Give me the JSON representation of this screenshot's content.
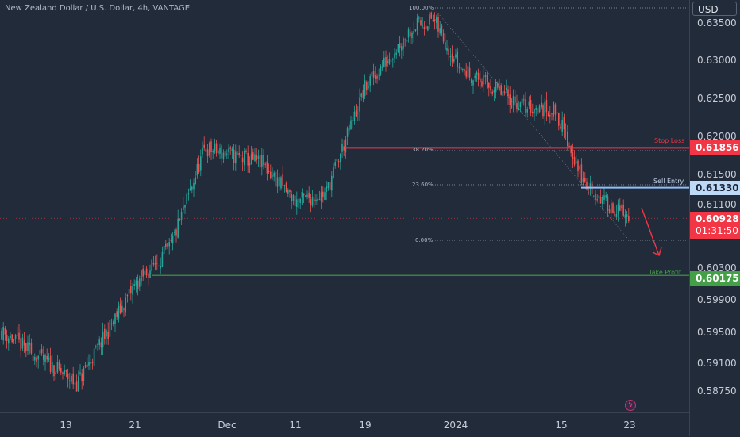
{
  "symbol_title": "New Zealand Dollar / U.S. Dollar, 4h, VANTAGE",
  "currency": "USD",
  "price_ticks": [
    "0.63500",
    "0.63000",
    "0.62500",
    "0.62000",
    "0.61500",
    "0.61100",
    "0.60300",
    "0.59900",
    "0.59500",
    "0.59100",
    "0.58750"
  ],
  "time_ticks": [
    "13",
    "21",
    "Dec",
    "11",
    "19",
    "2024",
    "15",
    "23"
  ],
  "levels": {
    "stop_loss": {
      "label": "Stop Loss",
      "price": "0.61856",
      "color": "#f23645"
    },
    "sell_entry": {
      "label": "Sell Entry",
      "price": "0.61330",
      "color": "#90bff9"
    },
    "take_profit": {
      "label": "Take Profit",
      "price": "0.60175",
      "color": "#43a047"
    },
    "current": {
      "price": "0.60928",
      "countdown": "01:31:50",
      "color": "#f23645"
    }
  },
  "fib_levels": [
    "100.00%",
    "38.20%",
    "23.60%",
    "0.00%"
  ],
  "colors": {
    "up": "#26a69a",
    "down": "#ef5350",
    "background": "#222b3a"
  },
  "chart_data": {
    "type": "candlestick",
    "title": "New Zealand Dollar / U.S. Dollar, 4h, VANTAGE",
    "currency": "USD",
    "y_ticks": [
      0.635,
      0.63,
      0.625,
      0.62,
      0.615,
      0.611,
      0.603,
      0.599,
      0.595,
      0.591,
      0.5875
    ],
    "x_ticks": [
      "13",
      "21",
      "Dec",
      "11",
      "19",
      "2024",
      "15",
      "23"
    ],
    "close_path": [
      [
        "13",
        0.5945
      ],
      [
        "17",
        0.5875
      ],
      [
        "21",
        0.6005
      ],
      [
        "25",
        0.6055
      ],
      [
        "Dec",
        0.6185
      ],
      [
        "5",
        0.6165
      ],
      [
        "11",
        0.6115
      ],
      [
        "15",
        0.6125
      ],
      [
        "19",
        0.6265
      ],
      [
        "26",
        0.6345
      ],
      [
        "29",
        0.6355
      ],
      [
        "2024",
        0.629
      ],
      [
        "10",
        0.624
      ],
      [
        "15",
        0.6235
      ],
      [
        "18",
        0.614
      ],
      [
        "21",
        0.6115
      ],
      [
        "23",
        0.6093
      ]
    ],
    "stop_loss": 0.61856,
    "sell_entry": 0.6133,
    "take_profit": 0.60175,
    "current_price": 0.60928,
    "fibonacci": {
      "levels": [
        "100.00%",
        "38.20%",
        "23.60%",
        "0.00%"
      ]
    }
  }
}
